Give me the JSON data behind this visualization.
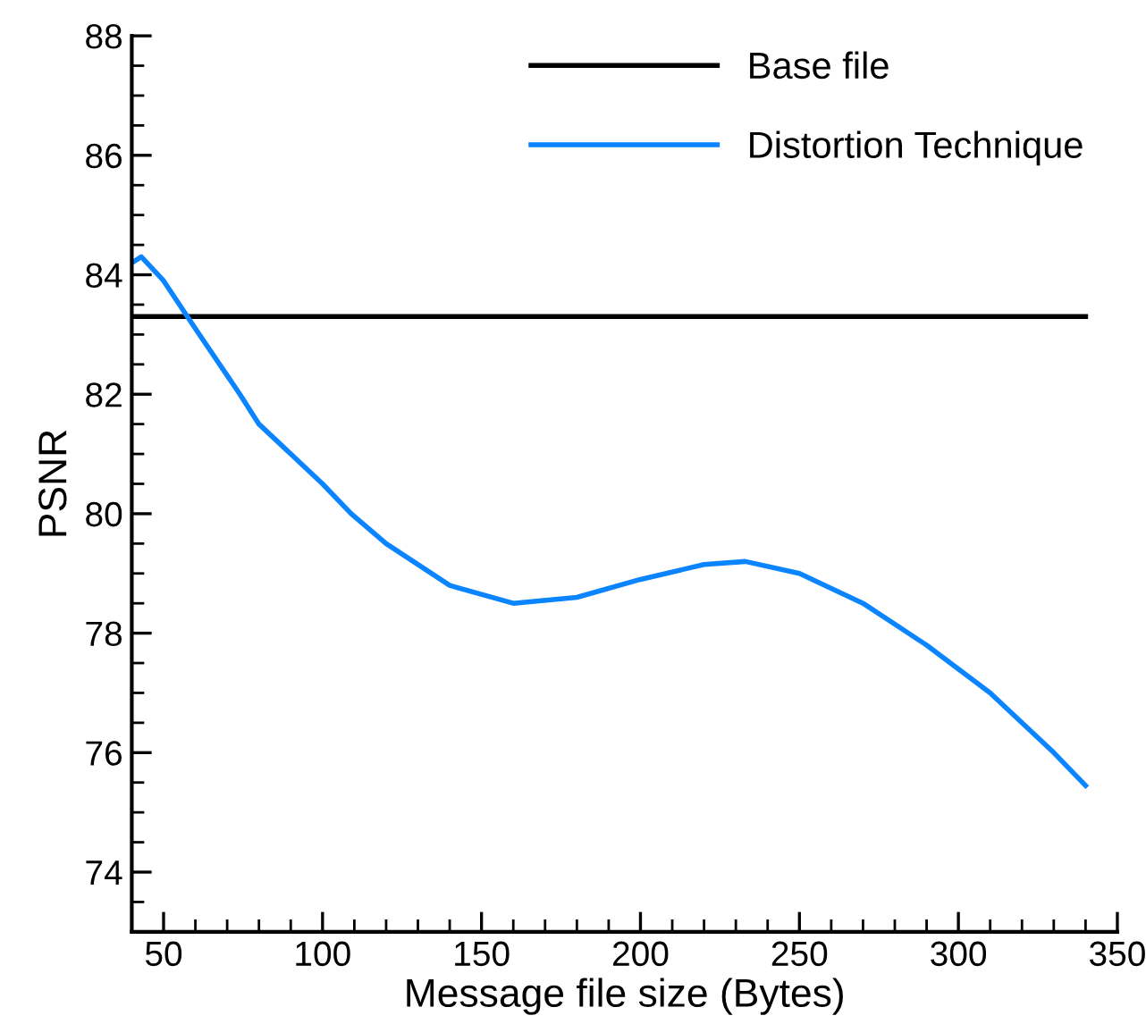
{
  "chart_data": {
    "type": "line",
    "xlabel": "Message file size (Bytes)",
    "ylabel": "PSNR",
    "xlim": [
      40,
      350
    ],
    "xticks": [
      50,
      100,
      150,
      200,
      250,
      300,
      350
    ],
    "ylim": [
      73,
      88
    ],
    "yticks": [
      74,
      76,
      78,
      80,
      82,
      84,
      86,
      88
    ],
    "grid": false,
    "legend": "top right",
    "marker": "none",
    "line_style": "solid",
    "series": [
      {
        "name": "Base file",
        "color": "#000000",
        "x": [
          40,
          340
        ],
        "values": [
          83.3,
          83.3
        ]
      },
      {
        "name": "Distortion Technique",
        "color": "#0a84ff",
        "x": [
          40,
          43,
          50,
          60,
          74,
          80,
          90,
          100,
          109,
          120,
          140,
          160,
          180,
          200,
          220,
          233,
          250,
          270,
          290,
          310,
          330,
          340
        ],
        "values": [
          84.2,
          84.3,
          83.9,
          83.1,
          82.0,
          81.5,
          81.0,
          80.5,
          80.0,
          79.5,
          78.8,
          78.5,
          78.6,
          78.9,
          79.15,
          79.2,
          79.0,
          78.5,
          77.8,
          77.0,
          76.0,
          75.45
        ]
      }
    ]
  }
}
